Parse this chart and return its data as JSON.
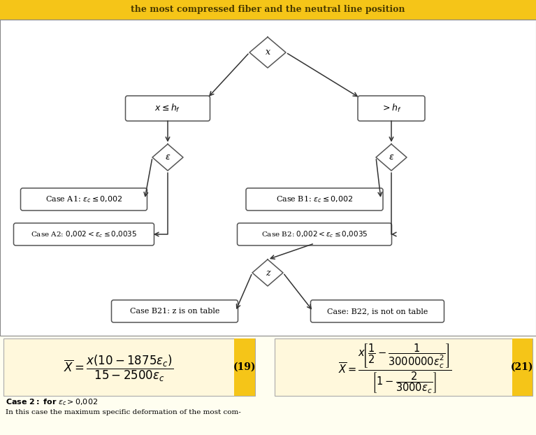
{
  "title": "the most compressed fiber and the neutral line position",
  "title_color": "#4a3a00",
  "header_bg": "#F5C518",
  "box_edge_color": "#555555",
  "box_fill": "#FFFFFF",
  "arrow_color": "#333333",
  "diamond_fill": "#FFFFFF",
  "diamond_edge": "#555555",
  "equation_bg": "#FFF5DC",
  "gold_bar": "#F5C518",
  "case2_text1": "Case 2: for",
  "case2_text2": " > 0,002",
  "case2_text3": "In this case the maximum specific deformation of the most com-"
}
